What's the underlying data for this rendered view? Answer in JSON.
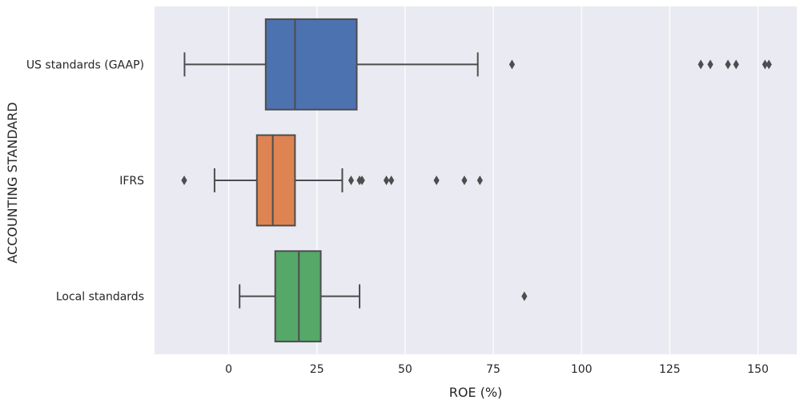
{
  "chart_data": {
    "type": "box",
    "orientation": "horizontal",
    "xlabel": "ROE (%)",
    "ylabel": "ACCOUNTING STANDARD",
    "xlim": [
      -21,
      161
    ],
    "xticks": [
      0,
      25,
      50,
      75,
      100,
      125,
      150
    ],
    "grid": true,
    "background": "#EAEAF2",
    "grid_color": "#FFFFFF",
    "line_color": "#4D4D4D",
    "categories": [
      "US standards (GAAP)",
      "IFRS",
      "Local standards"
    ],
    "boxes": [
      {
        "category": "US standards (GAAP)",
        "color": "#4C72B0",
        "whisker_low": -12.5,
        "q1": 10.5,
        "median": 18.8,
        "q3": 36.3,
        "whisker_high": 70.6,
        "outliers": [
          80.3,
          133.8,
          136.5,
          141.5,
          143.8,
          152.0,
          153.1
        ]
      },
      {
        "category": "IFRS",
        "color": "#DD8452",
        "whisker_low": -4.0,
        "q1": 8.0,
        "median": 12.5,
        "q3": 18.8,
        "whisker_high": 32.2,
        "outliers": [
          -12.6,
          34.7,
          37.1,
          37.8,
          44.7,
          46.1,
          58.9,
          66.8,
          71.2
        ]
      },
      {
        "category": "Local standards",
        "color": "#55A868",
        "whisker_low": 3.1,
        "q1": 13.2,
        "median": 19.9,
        "q3": 26.1,
        "whisker_high": 37.1,
        "outliers": [
          83.8
        ]
      }
    ]
  }
}
